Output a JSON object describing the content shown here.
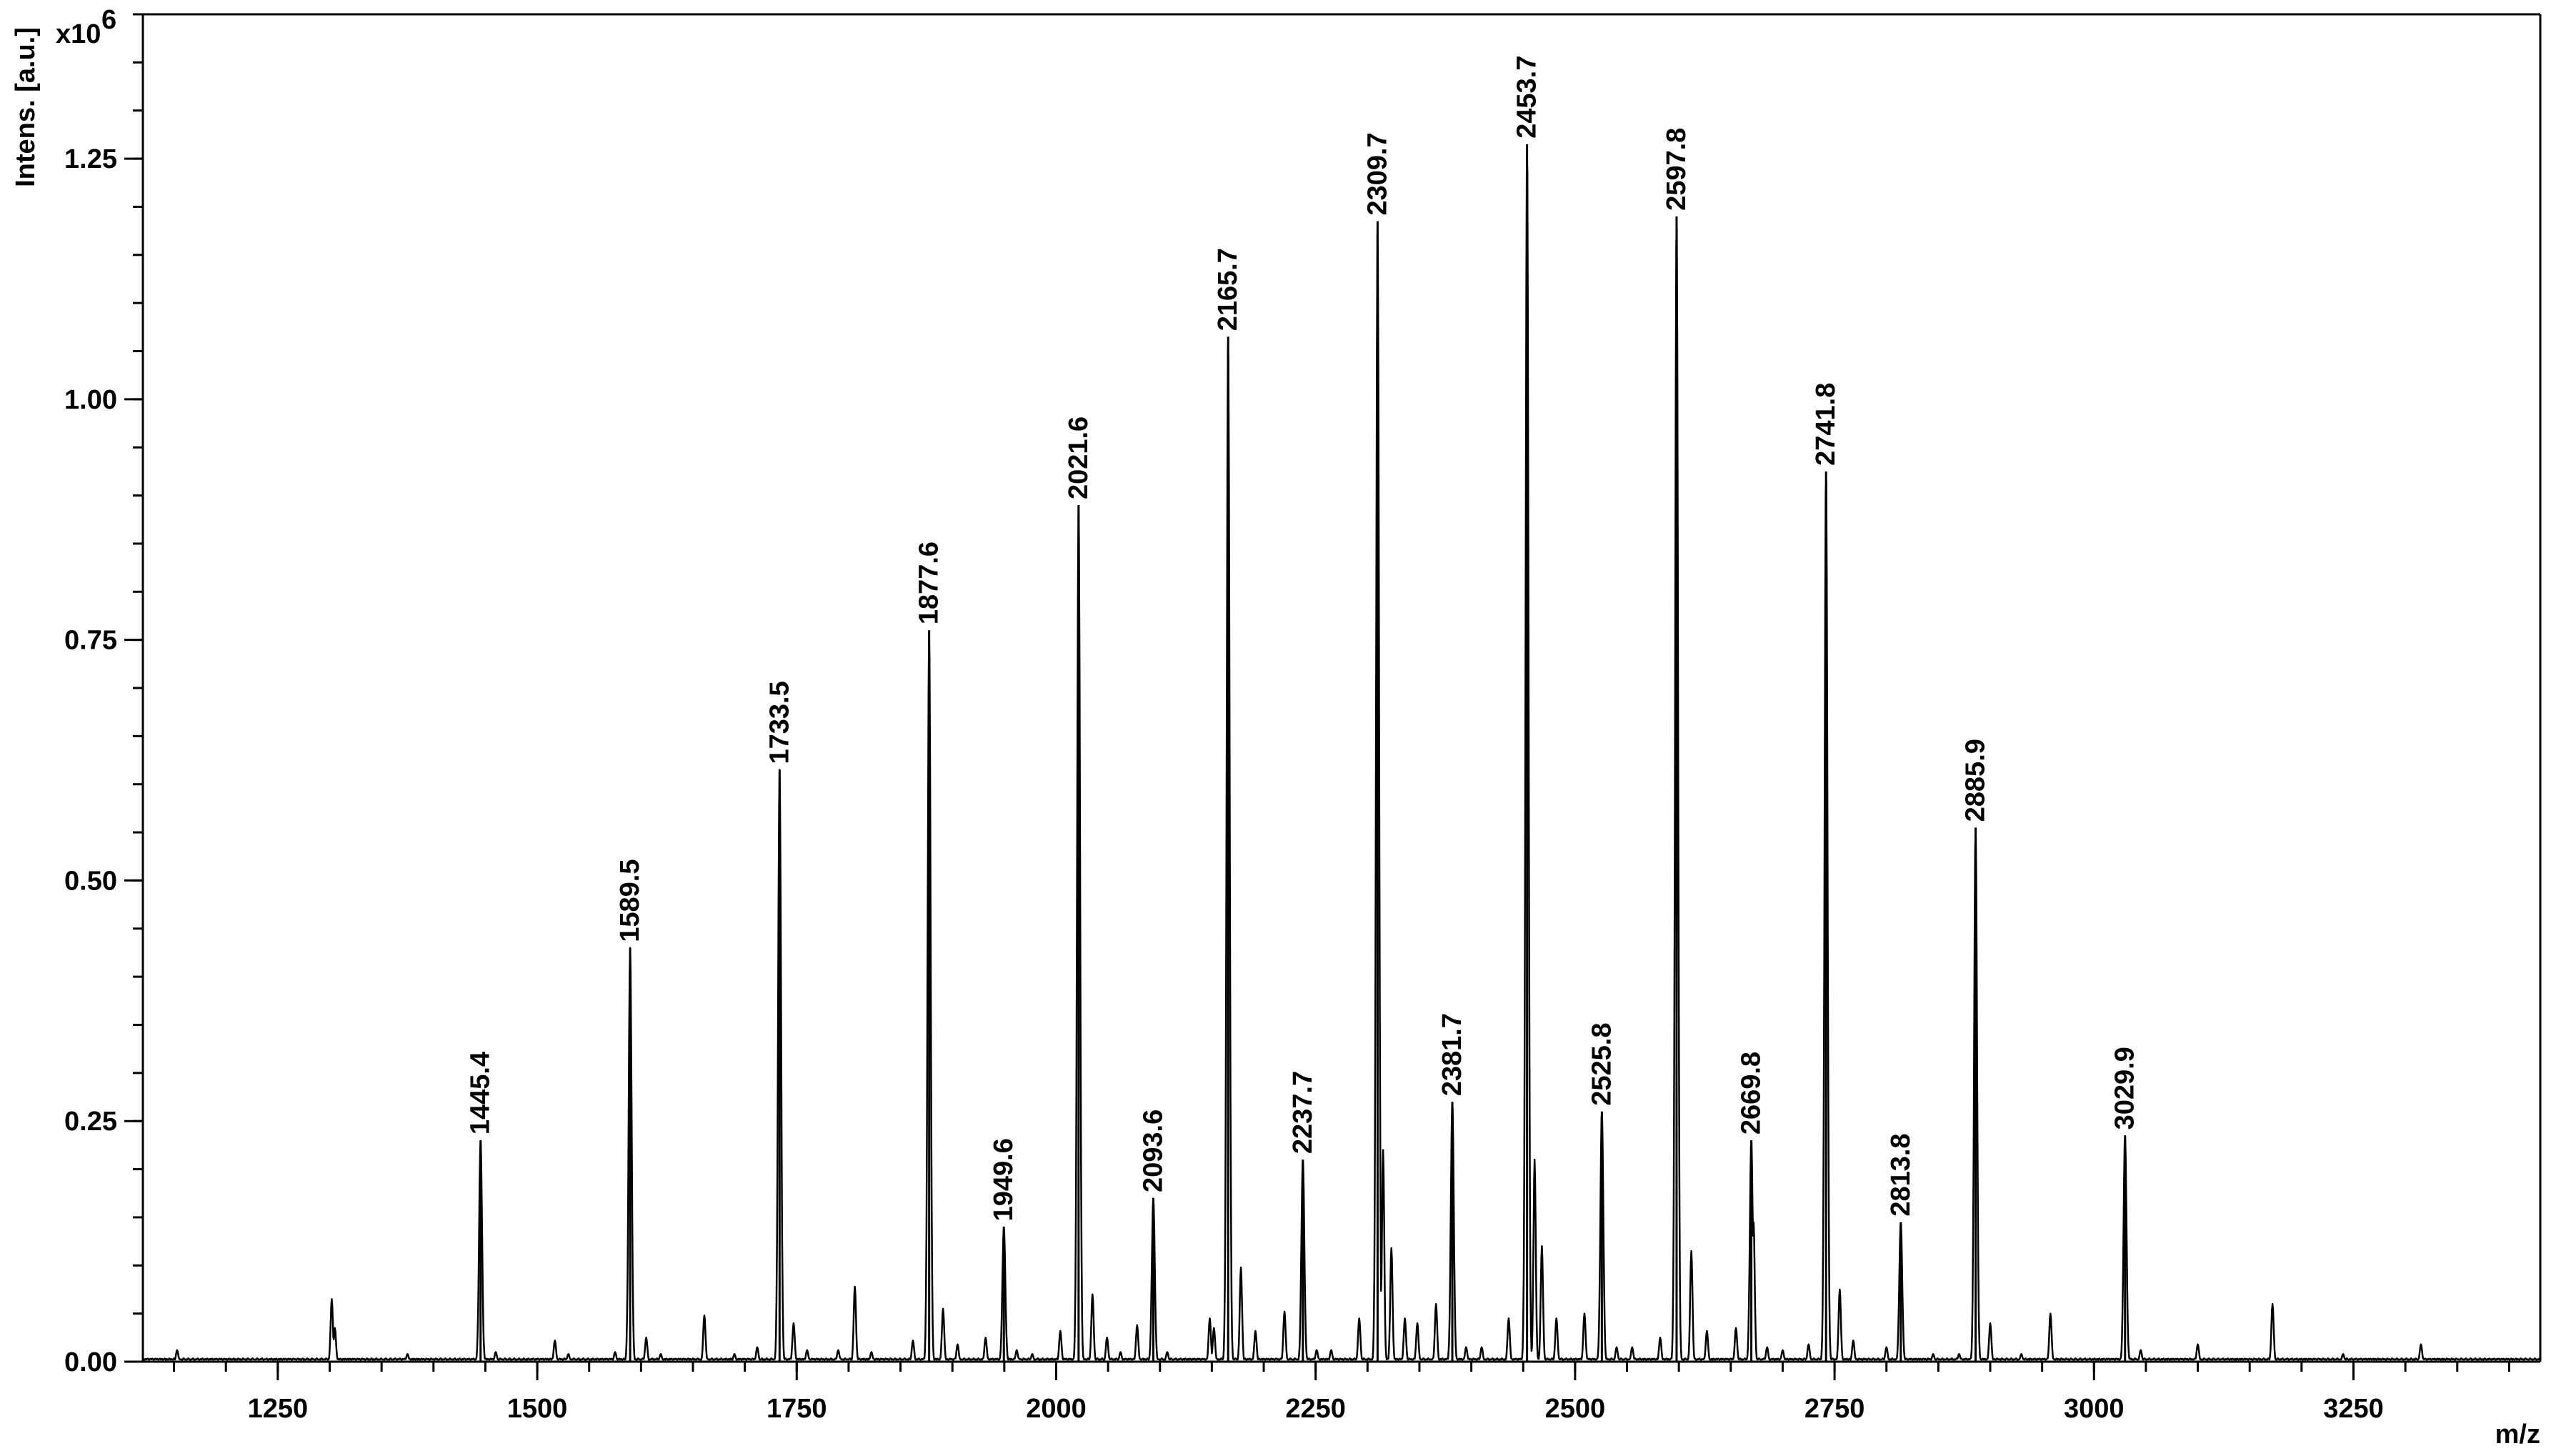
{
  "chart_data": {
    "type": "line",
    "xlabel": "m/z",
    "ylabel": "Intens. [a.u.]",
    "y_multiplier": {
      "base": "x10",
      "exponent": "6"
    },
    "xlim": [
      1120,
      3430
    ],
    "ylim": [
      0,
      1.4
    ],
    "x_ticks": [
      1250,
      1500,
      1750,
      2000,
      2250,
      2500,
      2750,
      3000,
      3250
    ],
    "x_minor_step": 50,
    "y_ticks": [
      {
        "value": 0.0,
        "label": "0.00"
      },
      {
        "value": 0.25,
        "label": "0.25"
      },
      {
        "value": 0.5,
        "label": "0.50"
      },
      {
        "value": 0.75,
        "label": "0.75"
      },
      {
        "value": 1.0,
        "label": "1.00"
      },
      {
        "value": 1.25,
        "label": "1.25"
      }
    ],
    "y_minor_step": 0.05,
    "grid": false,
    "labeled_peaks": [
      {
        "x": 1445.4,
        "y": 0.23,
        "label": "1445.4"
      },
      {
        "x": 1589.5,
        "y": 0.43,
        "label": "1589.5"
      },
      {
        "x": 1733.5,
        "y": 0.615,
        "label": "1733.5"
      },
      {
        "x": 1877.6,
        "y": 0.76,
        "label": "1877.6"
      },
      {
        "x": 1949.6,
        "y": 0.14,
        "label": "1949.6"
      },
      {
        "x": 2021.6,
        "y": 0.89,
        "label": "2021.6"
      },
      {
        "x": 2093.6,
        "y": 0.17,
        "label": "2093.6"
      },
      {
        "x": 2165.7,
        "y": 1.065,
        "label": "2165.7"
      },
      {
        "x": 2237.7,
        "y": 0.21,
        "label": "2237.7"
      },
      {
        "x": 2309.7,
        "y": 1.185,
        "label": "2309.7"
      },
      {
        "x": 2381.7,
        "y": 0.27,
        "label": "2381.7"
      },
      {
        "x": 2453.7,
        "y": 1.265,
        "label": "2453.7"
      },
      {
        "x": 2525.8,
        "y": 0.26,
        "label": "2525.8"
      },
      {
        "x": 2597.8,
        "y": 1.19,
        "label": "2597.8"
      },
      {
        "x": 2669.8,
        "y": 0.23,
        "label": "2669.8"
      },
      {
        "x": 2741.8,
        "y": 0.925,
        "label": "2741.8"
      },
      {
        "x": 2813.8,
        "y": 0.145,
        "label": "2813.8"
      },
      {
        "x": 2885.9,
        "y": 0.555,
        "label": "2885.9"
      },
      {
        "x": 3029.9,
        "y": 0.235,
        "label": "3029.9"
      }
    ],
    "minor_peaks": [
      [
        1153,
        0.012
      ],
      [
        1302,
        0.065
      ],
      [
        1305,
        0.035
      ],
      [
        1375,
        0.008
      ],
      [
        1460,
        0.01
      ],
      [
        1517,
        0.022
      ],
      [
        1530,
        0.008
      ],
      [
        1575,
        0.01
      ],
      [
        1605,
        0.025
      ],
      [
        1619,
        0.008
      ],
      [
        1661,
        0.048
      ],
      [
        1690,
        0.008
      ],
      [
        1712,
        0.015
      ],
      [
        1747,
        0.04
      ],
      [
        1760,
        0.012
      ],
      [
        1790,
        0.012
      ],
      [
        1806,
        0.078
      ],
      [
        1822,
        0.01
      ],
      [
        1862,
        0.022
      ],
      [
        1891,
        0.055
      ],
      [
        1905,
        0.018
      ],
      [
        1932,
        0.025
      ],
      [
        1962,
        0.012
      ],
      [
        1977,
        0.008
      ],
      [
        2004,
        0.032
      ],
      [
        2035,
        0.07
      ],
      [
        2049,
        0.025
      ],
      [
        2062,
        0.01
      ],
      [
        2078,
        0.038
      ],
      [
        2107,
        0.01
      ],
      [
        2148,
        0.045
      ],
      [
        2152,
        0.035
      ],
      [
        2178,
        0.098
      ],
      [
        2192,
        0.032
      ],
      [
        2220,
        0.052
      ],
      [
        2251,
        0.012
      ],
      [
        2265,
        0.012
      ],
      [
        2292,
        0.045
      ],
      [
        2315,
        0.22
      ],
      [
        2323,
        0.118
      ],
      [
        2336,
        0.045
      ],
      [
        2348,
        0.04
      ],
      [
        2366,
        0.06
      ],
      [
        2395,
        0.015
      ],
      [
        2410,
        0.015
      ],
      [
        2436,
        0.045
      ],
      [
        2461,
        0.21
      ],
      [
        2468,
        0.12
      ],
      [
        2482,
        0.045
      ],
      [
        2509,
        0.05
      ],
      [
        2540,
        0.015
      ],
      [
        2555,
        0.015
      ],
      [
        2582,
        0.025
      ],
      [
        2612,
        0.115
      ],
      [
        2627,
        0.032
      ],
      [
        2655,
        0.035
      ],
      [
        2672,
        0.145
      ],
      [
        2685,
        0.015
      ],
      [
        2700,
        0.012
      ],
      [
        2725,
        0.018
      ],
      [
        2755,
        0.075
      ],
      [
        2768,
        0.022
      ],
      [
        2800,
        0.015
      ],
      [
        2845,
        0.008
      ],
      [
        2870,
        0.008
      ],
      [
        2900,
        0.04
      ],
      [
        2930,
        0.008
      ],
      [
        2958,
        0.05
      ],
      [
        3045,
        0.012
      ],
      [
        3100,
        0.018
      ],
      [
        3172,
        0.06
      ],
      [
        3240,
        0.008
      ],
      [
        3315,
        0.018
      ]
    ]
  }
}
